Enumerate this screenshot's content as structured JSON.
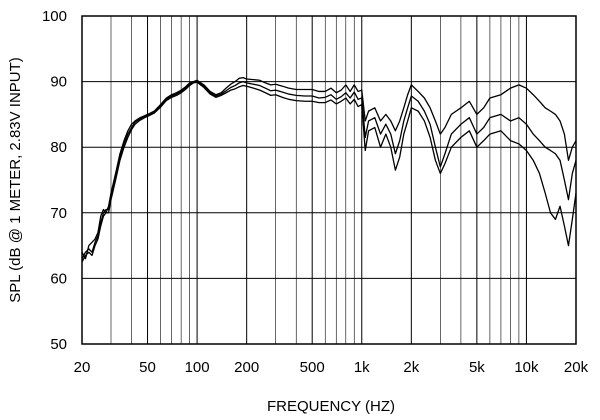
{
  "chart_data": {
    "type": "line",
    "title": "",
    "xlabel": "FREQUENCY  (HZ)",
    "ylabel": "SPL (dB @ 1 METER, 2.83V INPUT)",
    "xscale": "log",
    "xlim": [
      20,
      20000
    ],
    "ylim": [
      50,
      100
    ],
    "grid": true,
    "legend": "none",
    "x_ticks": [
      {
        "value": 20,
        "label": "20"
      },
      {
        "value": 50,
        "label": "50"
      },
      {
        "value": 100,
        "label": "100"
      },
      {
        "value": 200,
        "label": "200"
      },
      {
        "value": 500,
        "label": "500"
      },
      {
        "value": 1000,
        "label": "1k"
      },
      {
        "value": 2000,
        "label": "2k"
      },
      {
        "value": 5000,
        "label": "5k"
      },
      {
        "value": 10000,
        "label": "10k"
      },
      {
        "value": 20000,
        "label": "20k"
      }
    ],
    "y_ticks": [
      {
        "value": 50,
        "label": "50"
      },
      {
        "value": 60,
        "label": "60"
      },
      {
        "value": 70,
        "label": "70"
      },
      {
        "value": 80,
        "label": "80"
      },
      {
        "value": 90,
        "label": "90"
      },
      {
        "value": 100,
        "label": "100"
      }
    ],
    "series": [
      {
        "points": [
          [
            20,
            64
          ],
          [
            21,
            63
          ],
          [
            22,
            65
          ],
          [
            23,
            65.5
          ],
          [
            24,
            66
          ],
          [
            25,
            67
          ],
          [
            26,
            69.5
          ],
          [
            27,
            70.5
          ],
          [
            28,
            70
          ],
          [
            29,
            71
          ],
          [
            30,
            73
          ],
          [
            32,
            76
          ],
          [
            34,
            79
          ],
          [
            36,
            81
          ],
          [
            38,
            82.5
          ],
          [
            40,
            83.5
          ],
          [
            42,
            84
          ],
          [
            45,
            84.5
          ],
          [
            48,
            84.8
          ],
          [
            50,
            85
          ],
          [
            55,
            85.5
          ],
          [
            60,
            86.5
          ],
          [
            65,
            87.5
          ],
          [
            70,
            88
          ],
          [
            75,
            88.3
          ],
          [
            80,
            88.7
          ],
          [
            85,
            89.2
          ],
          [
            90,
            89.8
          ],
          [
            95,
            90
          ],
          [
            100,
            90.2
          ],
          [
            110,
            89.5
          ],
          [
            120,
            88.5
          ],
          [
            130,
            88
          ],
          [
            140,
            88.3
          ],
          [
            150,
            89
          ],
          [
            160,
            89.6
          ],
          [
            170,
            90
          ],
          [
            180,
            90.5
          ],
          [
            190,
            90.6
          ],
          [
            200,
            90.4
          ],
          [
            220,
            90.3
          ],
          [
            240,
            90.2
          ],
          [
            260,
            89.8
          ],
          [
            280,
            89.5
          ],
          [
            300,
            89.6
          ],
          [
            330,
            89.3
          ],
          [
            360,
            89
          ],
          [
            400,
            88.8
          ],
          [
            450,
            88.8
          ],
          [
            500,
            88.8
          ],
          [
            550,
            88.5
          ],
          [
            600,
            88.5
          ],
          [
            650,
            89
          ],
          [
            700,
            88.3
          ],
          [
            750,
            88.7
          ],
          [
            800,
            89.5
          ],
          [
            850,
            88.5
          ],
          [
            900,
            89.5
          ],
          [
            950,
            88.5
          ],
          [
            1000,
            88.7
          ],
          [
            1050,
            84
          ],
          [
            1100,
            85.5
          ],
          [
            1200,
            86
          ],
          [
            1300,
            84
          ],
          [
            1400,
            85
          ],
          [
            1500,
            84
          ],
          [
            1600,
            82.5
          ],
          [
            1700,
            84
          ],
          [
            1800,
            86
          ],
          [
            1900,
            88
          ],
          [
            2000,
            89.5
          ],
          [
            2200,
            88.5
          ],
          [
            2400,
            87.5
          ],
          [
            2600,
            86
          ],
          [
            2800,
            84
          ],
          [
            3000,
            82
          ],
          [
            3200,
            83
          ],
          [
            3500,
            85
          ],
          [
            4000,
            86
          ],
          [
            4500,
            87
          ],
          [
            5000,
            85
          ],
          [
            5500,
            86
          ],
          [
            6000,
            87.5
          ],
          [
            7000,
            88
          ],
          [
            8000,
            89
          ],
          [
            9000,
            89.5
          ],
          [
            10000,
            89
          ],
          [
            11000,
            88
          ],
          [
            12000,
            87
          ],
          [
            13000,
            86
          ],
          [
            14000,
            85.5
          ],
          [
            15000,
            85
          ],
          [
            16000,
            84
          ],
          [
            17000,
            82
          ],
          [
            18000,
            78
          ],
          [
            19000,
            80
          ],
          [
            20000,
            81
          ]
        ]
      },
      {
        "points": [
          [
            20,
            63
          ],
          [
            21,
            64
          ],
          [
            22,
            64.5
          ],
          [
            23,
            64
          ],
          [
            24,
            65.5
          ],
          [
            25,
            66.5
          ],
          [
            26,
            68.5
          ],
          [
            27,
            70
          ],
          [
            28,
            70.5
          ],
          [
            29,
            70.5
          ],
          [
            30,
            72.5
          ],
          [
            32,
            75.5
          ],
          [
            34,
            78.5
          ],
          [
            36,
            80.5
          ],
          [
            38,
            82
          ],
          [
            40,
            83
          ],
          [
            42,
            83.8
          ],
          [
            45,
            84.3
          ],
          [
            48,
            84.7
          ],
          [
            50,
            84.8
          ],
          [
            55,
            85.3
          ],
          [
            60,
            86.3
          ],
          [
            65,
            87.3
          ],
          [
            70,
            87.8
          ],
          [
            75,
            88.1
          ],
          [
            80,
            88.5
          ],
          [
            85,
            89
          ],
          [
            90,
            89.6
          ],
          [
            95,
            89.9
          ],
          [
            100,
            90
          ],
          [
            110,
            89.3
          ],
          [
            120,
            88.3
          ],
          [
            130,
            87.8
          ],
          [
            140,
            88.1
          ],
          [
            150,
            88.6
          ],
          [
            160,
            89.1
          ],
          [
            170,
            89.4
          ],
          [
            180,
            89.8
          ],
          [
            190,
            90
          ],
          [
            200,
            89.8
          ],
          [
            220,
            89.6
          ],
          [
            240,
            89.4
          ],
          [
            260,
            89
          ],
          [
            280,
            88.6
          ],
          [
            300,
            88.7
          ],
          [
            330,
            88.4
          ],
          [
            360,
            88.1
          ],
          [
            400,
            87.9
          ],
          [
            450,
            87.8
          ],
          [
            500,
            87.8
          ],
          [
            550,
            87.5
          ],
          [
            600,
            87.6
          ],
          [
            650,
            88
          ],
          [
            700,
            87.3
          ],
          [
            750,
            87.7
          ],
          [
            800,
            88.3
          ],
          [
            850,
            87.5
          ],
          [
            900,
            88.4
          ],
          [
            950,
            87.3
          ],
          [
            1000,
            87.5
          ],
          [
            1050,
            81.5
          ],
          [
            1100,
            84
          ],
          [
            1200,
            84.5
          ],
          [
            1300,
            82
          ],
          [
            1400,
            83.5
          ],
          [
            1500,
            82
          ],
          [
            1600,
            79
          ],
          [
            1700,
            81
          ],
          [
            1800,
            84
          ],
          [
            1900,
            86
          ],
          [
            2000,
            87.8
          ],
          [
            2200,
            87
          ],
          [
            2400,
            85.5
          ],
          [
            2600,
            83.5
          ],
          [
            2800,
            80
          ],
          [
            3000,
            77
          ],
          [
            3200,
            79
          ],
          [
            3500,
            82
          ],
          [
            4000,
            83.5
          ],
          [
            4500,
            84.5
          ],
          [
            5000,
            82
          ],
          [
            5500,
            83
          ],
          [
            6000,
            84.5
          ],
          [
            7000,
            85
          ],
          [
            8000,
            84
          ],
          [
            9000,
            84.5
          ],
          [
            10000,
            83.5
          ],
          [
            11000,
            82
          ],
          [
            12000,
            81
          ],
          [
            13000,
            80
          ],
          [
            14000,
            79.5
          ],
          [
            15000,
            79
          ],
          [
            16000,
            78
          ],
          [
            17000,
            75
          ],
          [
            18000,
            72
          ],
          [
            19000,
            76
          ],
          [
            20000,
            78
          ]
        ]
      },
      {
        "points": [
          [
            20,
            62.5
          ],
          [
            21,
            63.5
          ],
          [
            22,
            64
          ],
          [
            23,
            63.5
          ],
          [
            24,
            65
          ],
          [
            25,
            66
          ],
          [
            26,
            68
          ],
          [
            27,
            69.5
          ],
          [
            28,
            70
          ],
          [
            29,
            70
          ],
          [
            30,
            72
          ],
          [
            32,
            75
          ],
          [
            34,
            78
          ],
          [
            36,
            80
          ],
          [
            38,
            81.5
          ],
          [
            40,
            82.7
          ],
          [
            42,
            83.5
          ],
          [
            45,
            84.1
          ],
          [
            48,
            84.5
          ],
          [
            50,
            84.7
          ],
          [
            55,
            85.2
          ],
          [
            60,
            86.1
          ],
          [
            65,
            87.1
          ],
          [
            70,
            87.6
          ],
          [
            75,
            87.9
          ],
          [
            80,
            88.3
          ],
          [
            85,
            88.8
          ],
          [
            90,
            89.4
          ],
          [
            95,
            89.8
          ],
          [
            100,
            89.9
          ],
          [
            110,
            89.1
          ],
          [
            120,
            88.1
          ],
          [
            130,
            87.6
          ],
          [
            140,
            87.9
          ],
          [
            150,
            88.3
          ],
          [
            160,
            88.7
          ],
          [
            170,
            88.9
          ],
          [
            180,
            89.2
          ],
          [
            190,
            89.4
          ],
          [
            200,
            89.3
          ],
          [
            220,
            89
          ],
          [
            240,
            88.7
          ],
          [
            260,
            88.3
          ],
          [
            280,
            87.9
          ],
          [
            300,
            88
          ],
          [
            330,
            87.6
          ],
          [
            360,
            87.3
          ],
          [
            400,
            87.1
          ],
          [
            450,
            87
          ],
          [
            500,
            87
          ],
          [
            550,
            86.8
          ],
          [
            600,
            86.8
          ],
          [
            650,
            87.2
          ],
          [
            700,
            86.6
          ],
          [
            750,
            87
          ],
          [
            800,
            87.5
          ],
          [
            850,
            86.6
          ],
          [
            900,
            87.3
          ],
          [
            950,
            86.2
          ],
          [
            1000,
            86.5
          ],
          [
            1050,
            79.5
          ],
          [
            1100,
            82.5
          ],
          [
            1200,
            83
          ],
          [
            1300,
            80
          ],
          [
            1400,
            82
          ],
          [
            1500,
            80
          ],
          [
            1600,
            76.5
          ],
          [
            1700,
            78.5
          ],
          [
            1800,
            82
          ],
          [
            1900,
            84
          ],
          [
            2000,
            86
          ],
          [
            2200,
            85.5
          ],
          [
            2400,
            84
          ],
          [
            2600,
            81.5
          ],
          [
            2800,
            78
          ],
          [
            3000,
            76
          ],
          [
            3200,
            77.5
          ],
          [
            3500,
            80
          ],
          [
            4000,
            81.5
          ],
          [
            4500,
            82.5
          ],
          [
            5000,
            80
          ],
          [
            5500,
            81
          ],
          [
            6000,
            82
          ],
          [
            7000,
            82.5
          ],
          [
            8000,
            81
          ],
          [
            9000,
            80.5
          ],
          [
            10000,
            79.5
          ],
          [
            11000,
            78
          ],
          [
            12000,
            76
          ],
          [
            13000,
            73
          ],
          [
            14000,
            70
          ],
          [
            15000,
            69
          ],
          [
            16000,
            71
          ],
          [
            17000,
            68
          ],
          [
            18000,
            65
          ],
          [
            19000,
            69
          ],
          [
            20000,
            73
          ]
        ]
      }
    ]
  }
}
